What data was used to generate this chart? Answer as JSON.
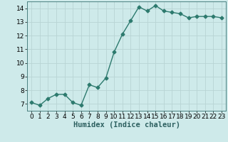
{
  "x": [
    0,
    1,
    2,
    3,
    4,
    5,
    6,
    7,
    8,
    9,
    10,
    11,
    12,
    13,
    14,
    15,
    16,
    17,
    18,
    19,
    20,
    21,
    22,
    23
  ],
  "y": [
    7.1,
    6.9,
    7.4,
    7.7,
    7.7,
    7.1,
    6.9,
    8.4,
    8.2,
    8.9,
    10.8,
    12.1,
    13.1,
    14.1,
    13.8,
    14.2,
    13.8,
    13.7,
    13.6,
    13.3,
    13.4,
    13.4,
    13.4,
    13.3
  ],
  "line_color": "#2d7a6e",
  "marker": "D",
  "marker_size": 2.5,
  "linewidth": 1.0,
  "xlabel": "Humidex (Indice chaleur)",
  "xlim": [
    -0.5,
    23.5
  ],
  "ylim": [
    6.5,
    14.5
  ],
  "yticks": [
    7,
    8,
    9,
    10,
    11,
    12,
    13,
    14
  ],
  "xticks": [
    0,
    1,
    2,
    3,
    4,
    5,
    6,
    7,
    8,
    9,
    10,
    11,
    12,
    13,
    14,
    15,
    16,
    17,
    18,
    19,
    20,
    21,
    22,
    23
  ],
  "bg_color": "#ceeaea",
  "grid_color": "#b8d4d4",
  "tick_fontsize": 6.5,
  "xlabel_fontsize": 7.5
}
